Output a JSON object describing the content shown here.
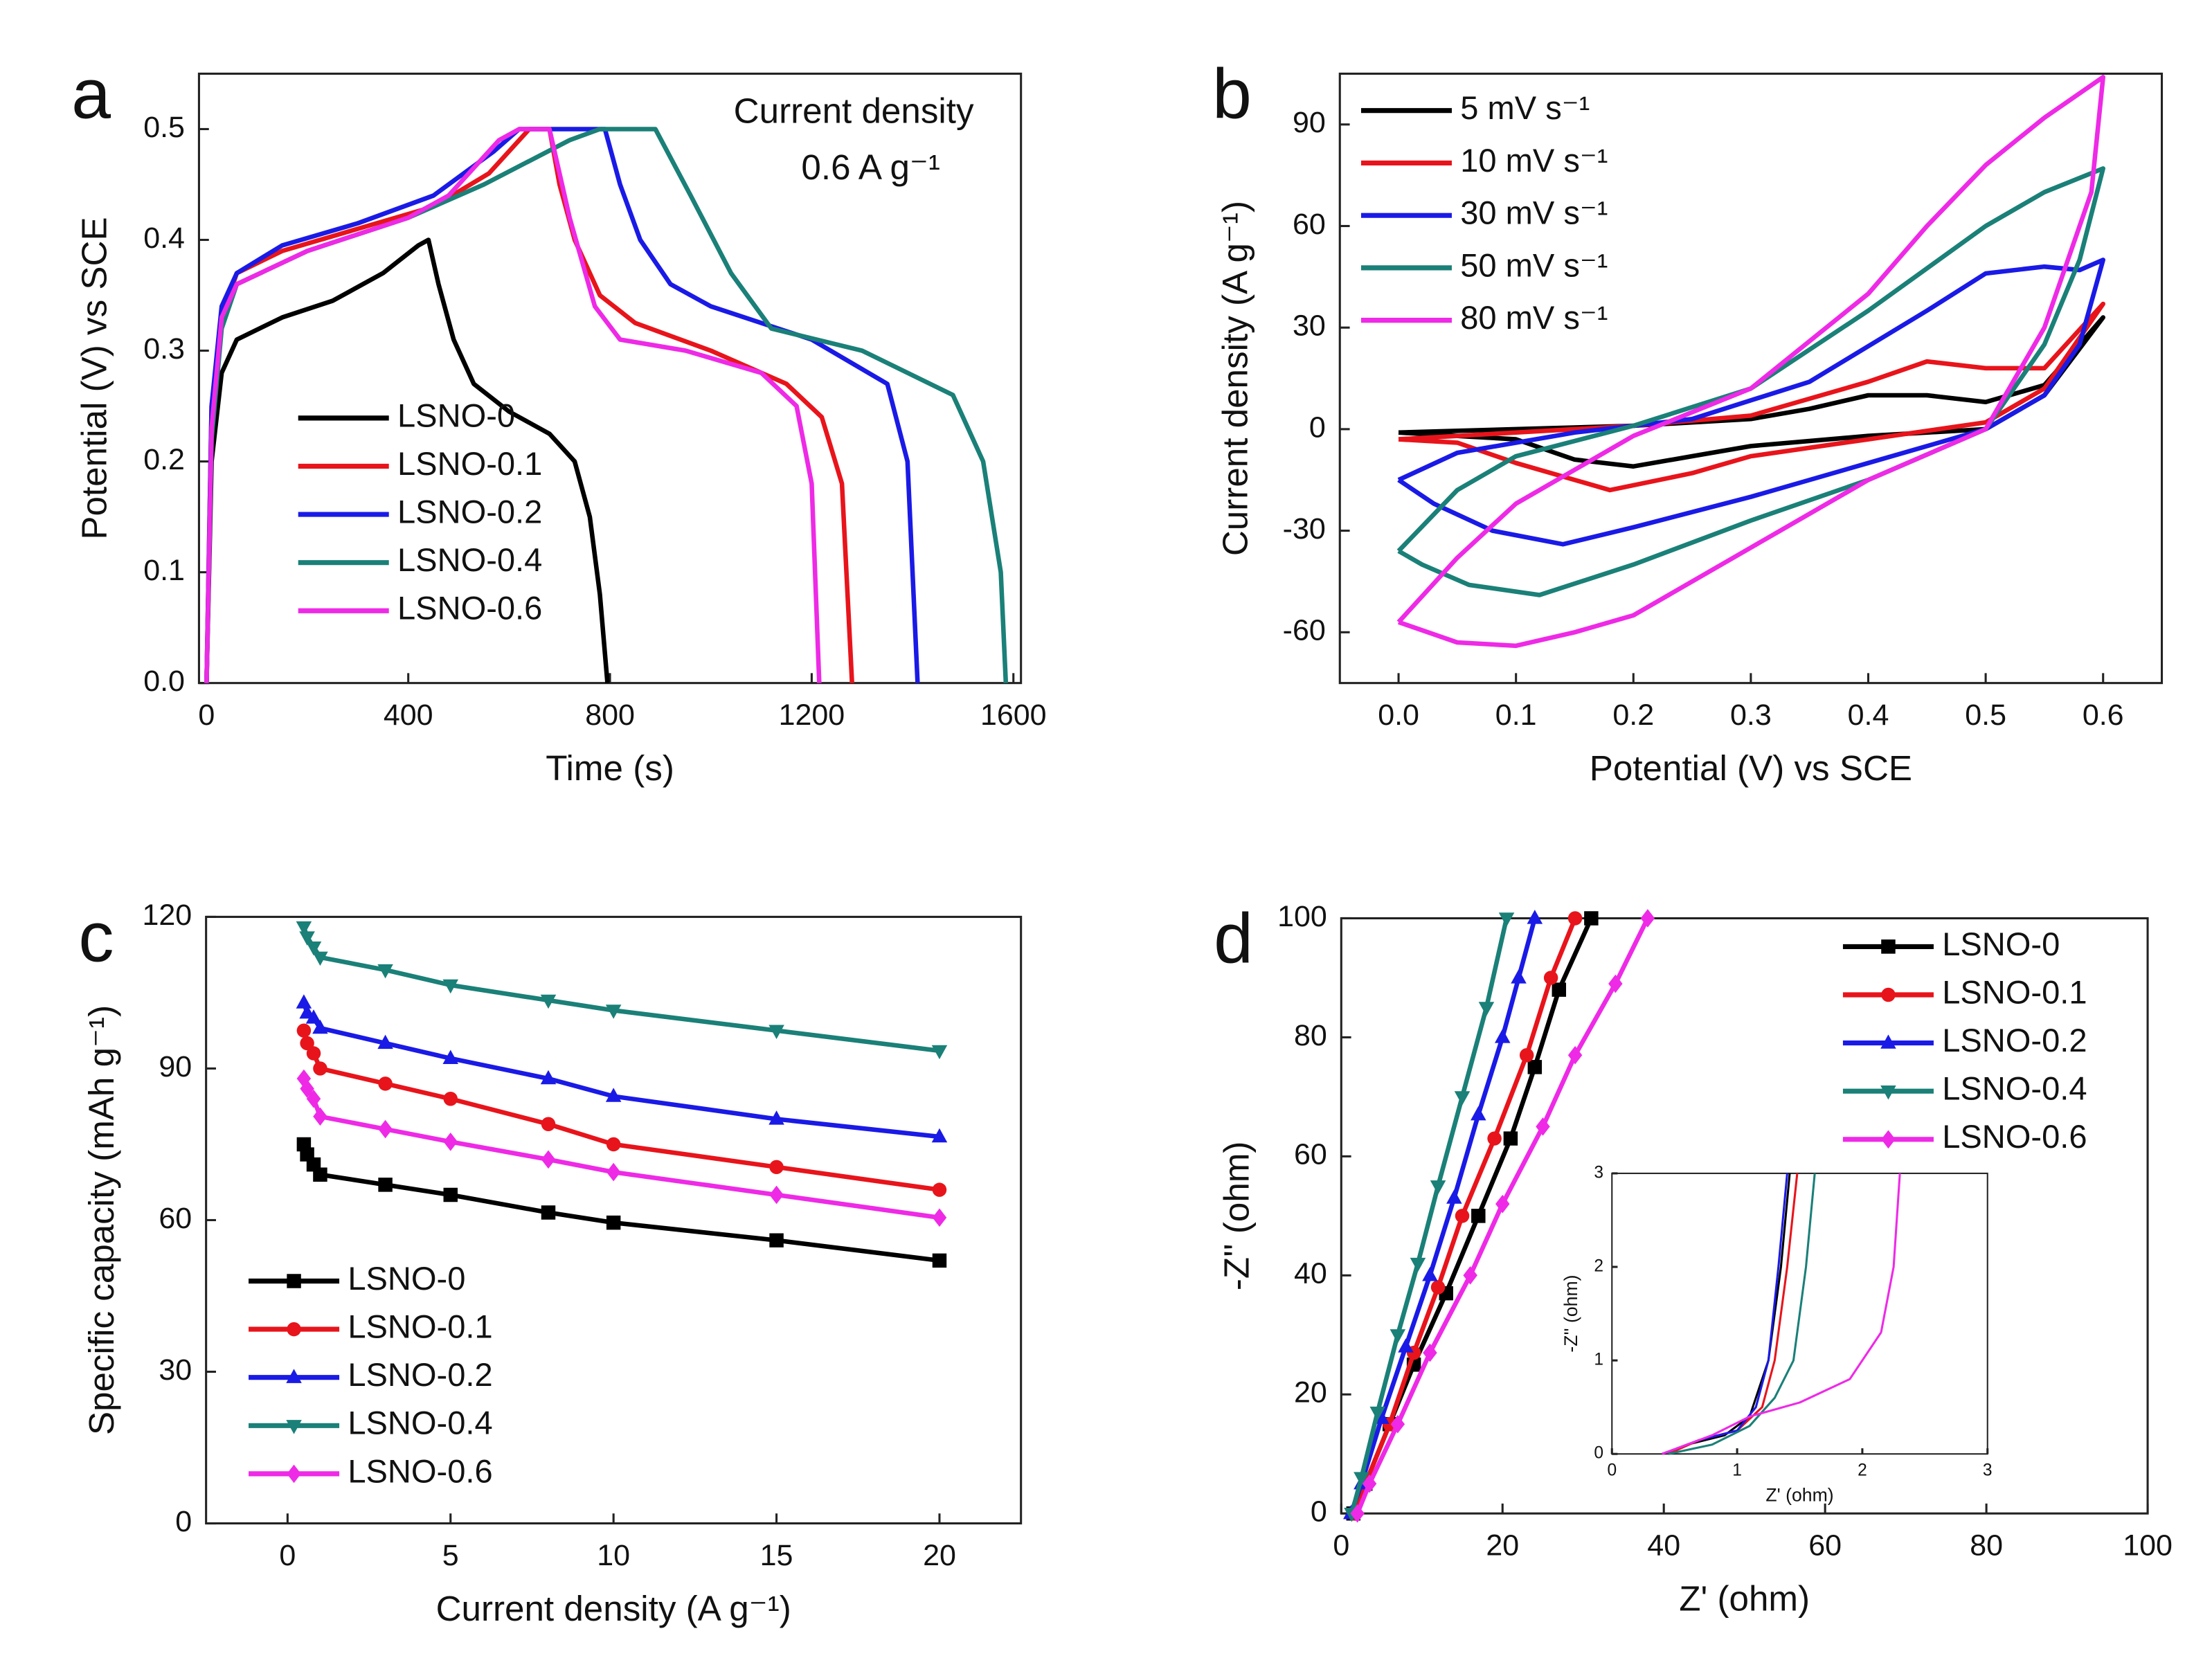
{
  "chart_data": [
    {
      "type": "line",
      "panel_label": "a",
      "x_label": "Time (s)",
      "y_label": "Potential (V) vs SCE",
      "annotations": [
        "Current density",
        "0.6 A g⁻¹"
      ],
      "xlim": [
        -15,
        1615
      ],
      "ylim": [
        0,
        0.55
      ],
      "xticks": [
        0,
        400,
        800,
        1200,
        1600
      ],
      "yticks": [
        {
          "value": 0,
          "label": "0.0"
        },
        0.1,
        0.2,
        0.3,
        0.4,
        0.5
      ],
      "legend": "lower left",
      "series": [
        {
          "name": "LSNO-0",
          "color": "#000000",
          "x": [
            0,
            10,
            30,
            60,
            150,
            250,
            350,
            420,
            440,
            460,
            490,
            530,
            600,
            680,
            730,
            760,
            780,
            795
          ],
          "values": [
            0,
            0.2,
            0.28,
            0.31,
            0.33,
            0.345,
            0.37,
            0.395,
            0.4,
            0.36,
            0.31,
            0.27,
            0.245,
            0.225,
            0.2,
            0.15,
            0.08,
            0
          ]
        },
        {
          "name": "LSNO-0.1",
          "color": "#e8141b",
          "x": [
            0,
            10,
            30,
            60,
            150,
            300,
            450,
            560,
            640,
            680,
            700,
            730,
            780,
            850,
            1000,
            1150,
            1220,
            1260,
            1280
          ],
          "values": [
            0,
            0.25,
            0.33,
            0.37,
            0.39,
            0.41,
            0.43,
            0.46,
            0.5,
            0.5,
            0.45,
            0.4,
            0.35,
            0.325,
            0.3,
            0.27,
            0.24,
            0.18,
            0
          ]
        },
        {
          "name": "LSNO-0.2",
          "color": "#1a1ae6",
          "x": [
            0,
            10,
            30,
            60,
            150,
            300,
            450,
            570,
            620,
            790,
            820,
            860,
            920,
            1000,
            1200,
            1350,
            1390,
            1410
          ],
          "values": [
            0,
            0.25,
            0.34,
            0.37,
            0.395,
            0.415,
            0.44,
            0.48,
            0.5,
            0.5,
            0.45,
            0.4,
            0.36,
            0.34,
            0.31,
            0.27,
            0.2,
            0
          ]
        },
        {
          "name": "LSNO-0.4",
          "color": "#1a8078",
          "x": [
            0,
            10,
            30,
            60,
            200,
            400,
            550,
            720,
            780,
            890,
            960,
            1040,
            1120,
            1300,
            1480,
            1540,
            1575,
            1585
          ],
          "values": [
            0,
            0.22,
            0.32,
            0.36,
            0.39,
            0.42,
            0.45,
            0.49,
            0.5,
            0.5,
            0.44,
            0.37,
            0.32,
            0.3,
            0.26,
            0.2,
            0.1,
            0
          ]
        },
        {
          "name": "LSNO-0.6",
          "color": "#ee2ae6",
          "x": [
            0,
            10,
            30,
            60,
            200,
            400,
            480,
            580,
            620,
            680,
            720,
            770,
            820,
            950,
            1100,
            1170,
            1200,
            1215
          ],
          "values": [
            0,
            0.23,
            0.33,
            0.36,
            0.39,
            0.42,
            0.44,
            0.49,
            0.5,
            0.5,
            0.42,
            0.34,
            0.31,
            0.3,
            0.28,
            0.25,
            0.18,
            0
          ]
        }
      ]
    },
    {
      "type": "line",
      "panel_label": "b",
      "x_label": "Potential (V) vs SCE",
      "y_label": "Current density (A g⁻¹)",
      "xlim": [
        -0.05,
        0.65
      ],
      "ylim": [
        -75,
        105
      ],
      "xticks": [
        {
          "value": 0,
          "label": "0.0"
        },
        0.1,
        0.2,
        0.3,
        0.4,
        0.5,
        0.6
      ],
      "yticks": [
        -60,
        -30,
        0,
        30,
        60,
        90
      ],
      "legend": "upper left",
      "series": [
        {
          "name": "5 mV s⁻¹",
          "color": "#000000",
          "x": [
            0,
            0.1,
            0.2,
            0.3,
            0.35,
            0.4,
            0.45,
            0.5,
            0.55,
            0.6,
            0.55,
            0.5,
            0.4,
            0.3,
            0.25,
            0.2,
            0.15,
            0.1,
            0.05,
            0
          ],
          "values": [
            -1,
            0,
            1,
            3,
            6,
            10,
            10,
            8,
            13,
            33,
            10,
            0,
            -2,
            -5,
            -8,
            -11,
            -9,
            -3,
            -2,
            -1
          ]
        },
        {
          "name": "10 mV s⁻¹",
          "color": "#e8141b",
          "x": [
            0,
            0.1,
            0.2,
            0.3,
            0.4,
            0.45,
            0.5,
            0.55,
            0.6,
            0.55,
            0.5,
            0.4,
            0.3,
            0.25,
            0.18,
            0.1,
            0.05,
            0
          ],
          "values": [
            -3,
            -1,
            1,
            4,
            14,
            20,
            18,
            18,
            37,
            12,
            2,
            -3,
            -8,
            -13,
            -18,
            -10,
            -4,
            -3
          ]
        },
        {
          "name": "30 mV s⁻¹",
          "color": "#1a1ae6",
          "x": [
            0,
            0.05,
            0.15,
            0.25,
            0.35,
            0.45,
            0.5,
            0.55,
            0.58,
            0.6,
            0.58,
            0.55,
            0.5,
            0.4,
            0.3,
            0.2,
            0.14,
            0.08,
            0.03,
            0
          ],
          "values": [
            -15,
            -7,
            -1,
            3,
            14,
            35,
            46,
            48,
            47,
            50,
            25,
            10,
            0,
            -10,
            -20,
            -29,
            -34,
            -30,
            -22,
            -15
          ]
        },
        {
          "name": "50 mV s⁻¹",
          "color": "#1a8078",
          "x": [
            0,
            0.05,
            0.1,
            0.2,
            0.3,
            0.4,
            0.5,
            0.55,
            0.6,
            0.58,
            0.55,
            0.5,
            0.4,
            0.3,
            0.2,
            0.12,
            0.06,
            0.02,
            0
          ],
          "values": [
            -36,
            -18,
            -8,
            1,
            12,
            35,
            60,
            70,
            77,
            50,
            25,
            0,
            -15,
            -27,
            -40,
            -49,
            -46,
            -40,
            -36
          ]
        },
        {
          "name": "80 mV s⁻¹",
          "color": "#ee2ae6",
          "x": [
            0,
            0.05,
            0.1,
            0.2,
            0.3,
            0.4,
            0.45,
            0.5,
            0.55,
            0.6,
            0.59,
            0.55,
            0.5,
            0.4,
            0.3,
            0.2,
            0.15,
            0.1,
            0.05,
            0
          ],
          "values": [
            -57,
            -38,
            -22,
            -2,
            12,
            40,
            60,
            78,
            92,
            104,
            70,
            30,
            0,
            -15,
            -35,
            -55,
            -60,
            -64,
            -63,
            -57
          ]
        }
      ]
    },
    {
      "type": "line",
      "panel_label": "c",
      "x_label": "Current density (A g⁻¹)",
      "y_label": "Specific capacity (mAh g⁻¹)",
      "xlim": [
        -2.5,
        22.5
      ],
      "ylim": [
        0,
        120
      ],
      "xticks": [
        0,
        5,
        10,
        15,
        20
      ],
      "yticks": [
        0,
        30,
        60,
        90,
        120
      ],
      "legend": "lower left",
      "series": [
        {
          "name": "LSNO-0",
          "color": "#000000",
          "marker": "square",
          "x": [
            0.5,
            0.6,
            0.8,
            1,
            3,
            5,
            8,
            10,
            15,
            20
          ],
          "values": [
            75,
            73,
            71,
            69,
            67,
            65,
            61.5,
            59.5,
            56,
            52
          ]
        },
        {
          "name": "LSNO-0.1",
          "color": "#e8141b",
          "marker": "circle",
          "x": [
            0.5,
            0.6,
            0.8,
            1,
            3,
            5,
            8,
            10,
            15,
            20
          ],
          "values": [
            97.5,
            95,
            93,
            90,
            87,
            84,
            79,
            75,
            70.5,
            66
          ]
        },
        {
          "name": "LSNO-0.2",
          "color": "#1a1ae6",
          "marker": "triangle-up",
          "x": [
            0.5,
            0.6,
            0.8,
            1,
            3,
            5,
            8,
            10,
            15,
            20
          ],
          "values": [
            103,
            101,
            100,
            98,
            95,
            92,
            88,
            84.5,
            80,
            76.5
          ]
        },
        {
          "name": "LSNO-0.4",
          "color": "#1a8078",
          "marker": "triangle-down",
          "x": [
            0.5,
            0.6,
            0.8,
            1,
            3,
            5,
            8,
            10,
            15,
            20
          ],
          "values": [
            118,
            116,
            114,
            112,
            109.5,
            106.5,
            103.5,
            101.5,
            97.5,
            93.5
          ]
        },
        {
          "name": "LSNO-0.6",
          "color": "#ee2ae6",
          "marker": "diamond",
          "x": [
            0.5,
            0.6,
            0.8,
            1,
            3,
            5,
            8,
            10,
            15,
            20
          ],
          "values": [
            88,
            86,
            84,
            80.5,
            78,
            75.5,
            72,
            69.5,
            65,
            60.5
          ]
        }
      ]
    },
    {
      "type": "line",
      "panel_label": "d",
      "x_label": "Z' (ohm)",
      "y_label": "-Z'' (ohm)",
      "xlim": [
        0,
        100
      ],
      "ylim": [
        0,
        100
      ],
      "xticks": [
        0,
        20,
        40,
        60,
        80,
        100
      ],
      "yticks": [
        0,
        20,
        40,
        60,
        80,
        100
      ],
      "legend": "upper right",
      "series": [
        {
          "name": "LSNO-0",
          "color": "#000000",
          "marker": "square",
          "x": [
            1.5,
            3,
            6,
            9,
            13,
            17,
            21,
            24,
            27,
            31
          ],
          "values": [
            0,
            5,
            15,
            25,
            37,
            50,
            63,
            75,
            88,
            100
          ]
        },
        {
          "name": "LSNO-0.1",
          "color": "#e8141b",
          "marker": "circle",
          "x": [
            1.5,
            3,
            6,
            9,
            12,
            15,
            19,
            23,
            26,
            29
          ],
          "values": [
            0,
            5,
            15,
            27,
            38,
            50,
            63,
            77,
            90,
            100
          ]
        },
        {
          "name": "LSNO-0.2",
          "color": "#1a1ae6",
          "marker": "triangle-up",
          "x": [
            1.2,
            2.5,
            5,
            8,
            11,
            14,
            17,
            20,
            22,
            24
          ],
          "values": [
            0,
            5,
            16,
            28,
            40,
            53,
            67,
            80,
            90,
            100
          ]
        },
        {
          "name": "LSNO-0.4",
          "color": "#1a8078",
          "marker": "triangle-down",
          "x": [
            1.3,
            2.5,
            4.5,
            7,
            9.5,
            12,
            15,
            18,
            20.5
          ],
          "values": [
            0,
            6,
            17,
            30,
            42,
            55,
            70,
            85,
            100
          ]
        },
        {
          "name": "LSNO-0.6",
          "color": "#ee2ae6",
          "marker": "diamond",
          "x": [
            2,
            3.5,
            7,
            11,
            16,
            20,
            25,
            29,
            34,
            38
          ],
          "values": [
            0,
            5,
            15,
            27,
            40,
            52,
            65,
            77,
            89,
            100
          ]
        }
      ]
    },
    {
      "type": "line",
      "x_label": "Z' (ohm)",
      "y_label": "-Z'' (ohm)",
      "xlim": [
        0,
        3
      ],
      "ylim": [
        0,
        3
      ],
      "xticks": [
        0,
        1,
        2,
        3
      ],
      "yticks": [
        0,
        1,
        2,
        3
      ],
      "series": [
        {
          "color": "#000000",
          "x": [
            0.45,
            0.6,
            0.9,
            1.1,
            1.25,
            1.35,
            1.42
          ],
          "values": [
            0,
            0.1,
            0.2,
            0.4,
            1,
            2,
            3
          ]
        },
        {
          "color": "#e8141b",
          "x": [
            0.45,
            0.7,
            1.0,
            1.2,
            1.3,
            1.4,
            1.48
          ],
          "values": [
            0,
            0.15,
            0.25,
            0.5,
            1,
            2,
            3
          ]
        },
        {
          "color": "#1a1ae6",
          "x": [
            0.4,
            0.7,
            1.0,
            1.15,
            1.25,
            1.33,
            1.4
          ],
          "values": [
            0,
            0.15,
            0.25,
            0.5,
            1,
            2,
            3
          ]
        },
        {
          "color": "#1a8078",
          "x": [
            0.45,
            0.8,
            1.1,
            1.3,
            1.45,
            1.55,
            1.62
          ],
          "values": [
            0,
            0.1,
            0.3,
            0.6,
            1,
            2,
            3
          ]
        },
        {
          "color": "#ee2ae6",
          "x": [
            0.4,
            0.8,
            1.1,
            1.5,
            1.9,
            2.15,
            2.25,
            2.3
          ],
          "values": [
            0,
            0.2,
            0.4,
            0.55,
            0.8,
            1.3,
            2,
            3
          ]
        }
      ]
    }
  ]
}
